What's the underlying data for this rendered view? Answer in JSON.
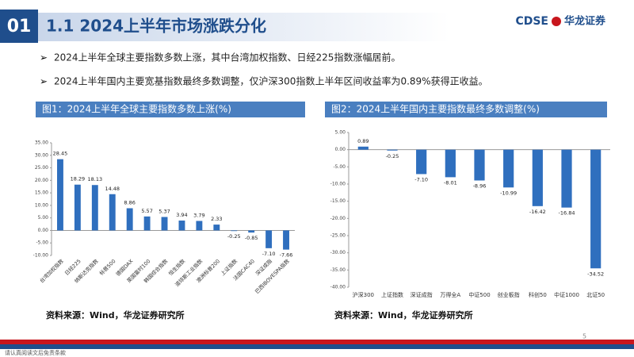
{
  "header": {
    "number": "01",
    "title": "1.1 2024上半年市场涨跌分化",
    "logo": "CDSE",
    "logo_cn": "华龙证券"
  },
  "bullets": [
    "2024上半年全球主要指数多数上涨，其中台湾加权指数、日经225指数涨幅居前。",
    "2024上半年国内主要宽基指数最终多数调整，仅沪深300指数上半年区间收益率为0.89%获得正收益。"
  ],
  "chart_data": [
    {
      "type": "bar",
      "title": "图1：2024上半年全球主要指数多数上涨(%)",
      "source": "资料来源：Wind，华龙证券研究所",
      "color": "#2f6fbe",
      "rotate_labels": true,
      "categories": [
        "台湾加权指数",
        "日经225",
        "纳斯达克指数",
        "标普500",
        "德国DAX",
        "英国富时100",
        "韩国综合指数",
        "恒生指数",
        "道琼斯工业指数",
        "澳洲标普200",
        "上证指数",
        "法国CAC40",
        "深证成指",
        "巴西IBOVESPA指数"
      ],
      "values": [
        28.45,
        18.29,
        18.13,
        14.48,
        8.86,
        5.57,
        5.37,
        3.94,
        3.79,
        2.33,
        -0.25,
        -0.85,
        -7.1,
        -7.66
      ],
      "value_labels": [
        "28.45",
        "18.29",
        "18.13",
        "14.48",
        "8.86",
        "5.57",
        "5.37",
        "3.94",
        "3.79",
        "2.33",
        "-0.25",
        "-0.85",
        "-7.10",
        "-7.66"
      ],
      "ylim": [
        -10,
        35
      ],
      "yticks": [
        {
          "value": -10,
          "label": "-10.00"
        },
        {
          "value": -5,
          "label": "-5.00"
        },
        {
          "value": 0,
          "label": "0.00"
        },
        {
          "value": 5,
          "label": "5.00"
        },
        {
          "value": 10,
          "label": "10.00"
        },
        {
          "value": 15,
          "label": "15.00"
        },
        {
          "value": 20,
          "label": "20.00"
        },
        {
          "value": 25,
          "label": "25.00"
        },
        {
          "value": 30,
          "label": "30.00"
        },
        {
          "value": 35,
          "label": "35.00"
        }
      ]
    },
    {
      "type": "bar",
      "title": "图2：2024上半年国内主要指数最终多数调整(%)",
      "source": "资料来源：Wind，华龙证券研究所",
      "color": "#2f6fbe",
      "rotate_labels": false,
      "categories": [
        "沪深300",
        "上证指数",
        "深证成指",
        "万得全A",
        "中证500",
        "创业板指",
        "科创50",
        "中证1000",
        "北证50"
      ],
      "values": [
        0.89,
        -0.25,
        -7.1,
        -8.01,
        -8.96,
        -10.99,
        -16.42,
        -16.84,
        -34.52
      ],
      "value_labels": [
        "0.89",
        "-0.25",
        "-7.10",
        "-8.01",
        "-8.96",
        "-10.99",
        "-16.42",
        "-16.84",
        "-34.52"
      ],
      "ylim": [
        -40,
        5
      ],
      "yticks": [
        {
          "value": -40,
          "label": "-40.00"
        },
        {
          "value": -35,
          "label": "-35.00"
        },
        {
          "value": -30,
          "label": "-30.00"
        },
        {
          "value": -25,
          "label": "-25.00"
        },
        {
          "value": -20,
          "label": "-20.00"
        },
        {
          "value": -15,
          "label": "-15.00"
        },
        {
          "value": -10,
          "label": "-10.00"
        },
        {
          "value": -5,
          "label": "-5.00"
        },
        {
          "value": 0,
          "label": "0.00"
        },
        {
          "value": 5,
          "label": "5.00"
        }
      ]
    }
  ],
  "footer": {
    "disclaimer": "请认真阅读文后免责条款",
    "page_number": "5"
  }
}
